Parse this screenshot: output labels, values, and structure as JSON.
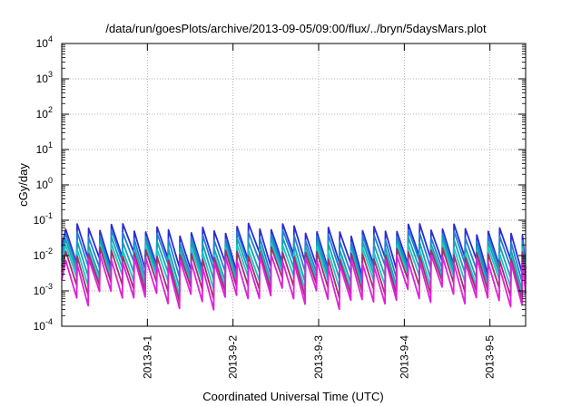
{
  "chart_data": {
    "type": "line",
    "title": "/data/run/goesPlots/archive/2013-09-05/09:00/flux/../bryn/5daysMars.plot",
    "xlabel": "Coordinated Universal Time (UTC)",
    "ylabel": "cGy/day",
    "y_scale": "log",
    "ylim": [
      0.0001,
      10000
    ],
    "y_ticks": [
      {
        "base": "10",
        "exp": "-4",
        "value": 0.0001
      },
      {
        "base": "10",
        "exp": "-3",
        "value": 0.001
      },
      {
        "base": "10",
        "exp": "-2",
        "value": 0.01
      },
      {
        "base": "10",
        "exp": "-1",
        "value": 0.1
      },
      {
        "base": "10",
        "exp": "0",
        "value": 1
      },
      {
        "base": "10",
        "exp": "1",
        "value": 10
      },
      {
        "base": "10",
        "exp": "2",
        "value": 100
      },
      {
        "base": "10",
        "exp": "3",
        "value": 1000
      },
      {
        "base": "10",
        "exp": "4",
        "value": 10000
      }
    ],
    "xlim": [
      "2013-08-31T00:00",
      "2013-09-05T10:00"
    ],
    "x_ticks": [
      "2013-9-1",
      "2013-9-2",
      "2013-9-3",
      "2013-9-4",
      "2013-9-5"
    ],
    "grid": true,
    "period_hours": 3.2,
    "series": [
      {
        "color": "#2b2bd8",
        "peak": 0.055,
        "trough": 0.006
      },
      {
        "color": "#1f7fd6",
        "peak": 0.035,
        "trough": 0.004
      },
      {
        "color": "#1aa0b4",
        "peak": 0.022,
        "trough": 0.0025
      },
      {
        "color": "#18c8c8",
        "peak": 0.015,
        "trough": 0.0017
      },
      {
        "color": "#a0306a",
        "peak": 0.011,
        "trough": 0.0011
      },
      {
        "color": "#e020d8",
        "peak": 0.007,
        "trough": 0.0006
      }
    ]
  }
}
